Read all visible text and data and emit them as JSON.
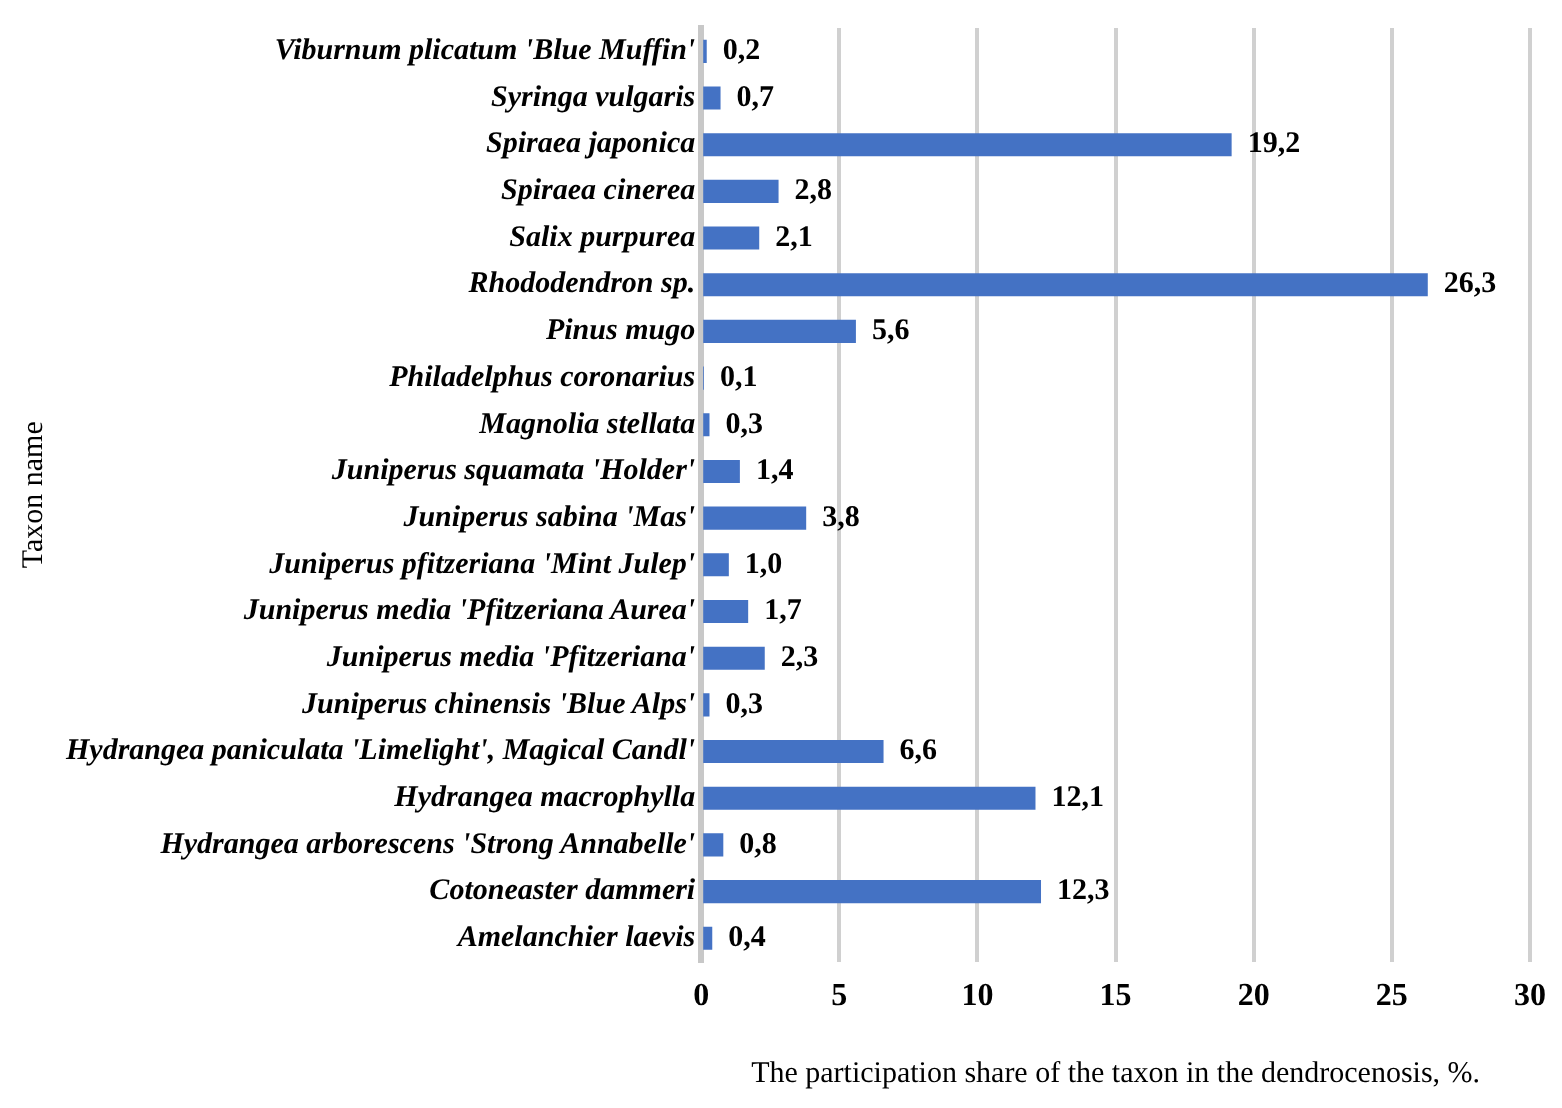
{
  "chart_data": {
    "type": "bar",
    "orientation": "horizontal",
    "ylabel": "Taxon name",
    "xlabel": "The participation share of the taxon in the dendrocenosis, %.",
    "categories": [
      "Viburnum plicatum 'Blue Muffin'",
      "Syringa vulgaris",
      "Spiraea japonica",
      "Spiraea cinerea",
      "Salix purpurea",
      "Rhododendron sp.",
      "Pinus mugo",
      "Philadelphus coronarius",
      "Magnolia stellata",
      "Juniperus squamata 'Holder'",
      "Juniperus sabina 'Mas'",
      "Juniperus pfitzeriana 'Mint Julep'",
      "Juniperus media 'Pfitzeriana Aurea'",
      "Juniperus media 'Pfitzeriana'",
      "Juniperus chinensis 'Blue Alps'",
      "Hydrangea paniculata 'Limelight', Magical Candl'",
      "Hydrangea macrophylla",
      "Hydrangea arborescens 'Strong Annabelle'",
      "Cotoneaster dammeri",
      "Amelanchier laevis"
    ],
    "values": [
      0.2,
      0.7,
      19.2,
      2.8,
      2.1,
      26.3,
      5.6,
      0.1,
      0.3,
      1.4,
      3.8,
      1.0,
      1.7,
      2.3,
      0.3,
      6.6,
      12.1,
      0.8,
      12.3,
      0.4
    ],
    "value_labels": [
      "0,2",
      "0,7",
      "19,2",
      "2,8",
      "2,1",
      "26,3",
      "5,6",
      "0,1",
      "0,3",
      "1,4",
      "3,8",
      "1,0",
      "1,7",
      "2,3",
      "0,3",
      "6,6",
      "12,1",
      "0,8",
      "12,3",
      "0,4"
    ],
    "color": "#4472c4",
    "xlim": [
      0,
      30
    ],
    "xticks": [
      0,
      5,
      10,
      15,
      20,
      25,
      30
    ],
    "grid": "x",
    "legend": false
  }
}
